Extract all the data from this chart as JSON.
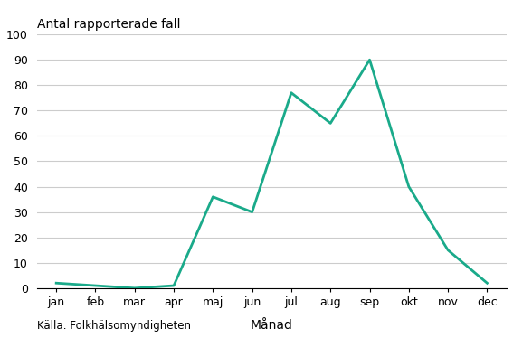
{
  "months": [
    "jan",
    "feb",
    "mar",
    "apr",
    "maj",
    "jun",
    "jul",
    "aug",
    "sep",
    "okt",
    "nov",
    "dec"
  ],
  "values": [
    2,
    1,
    0,
    1,
    36,
    30,
    77,
    65,
    90,
    40,
    15,
    2
  ],
  "line_color": "#1aaa8a",
  "line_width": 2.0,
  "ylabel": "Antal rapporterade fall",
  "xlabel": "Månad",
  "ylim": [
    0,
    100
  ],
  "yticks": [
    0,
    10,
    20,
    30,
    40,
    50,
    60,
    70,
    80,
    90,
    100
  ],
  "source_text": "Källa: Folkhälsomyndigheten",
  "background_color": "#ffffff",
  "grid_color": "#cccccc",
  "ylabel_fontsize": 10,
  "xlabel_fontsize": 10,
  "tick_fontsize": 9,
  "source_fontsize": 8.5
}
